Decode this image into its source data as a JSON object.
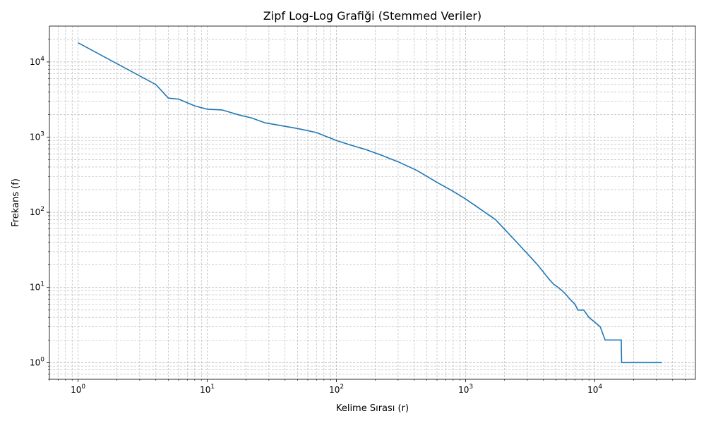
{
  "chart_data": {
    "type": "line",
    "title": "Zipf Log-Log Grafiği (Stemmed Veriler)",
    "xlabel": "Kelime Sırası (r)",
    "ylabel": "Frekans (f)",
    "xscale": "log",
    "yscale": "log",
    "xlim": [
      0.6,
      60000
    ],
    "ylim": [
      0.6,
      30000
    ],
    "x_tick_exponents": [
      0,
      1,
      2,
      3,
      4
    ],
    "y_tick_exponents": [
      0,
      1,
      2,
      3,
      4
    ],
    "grid": true,
    "line_color": "#1f77b4",
    "series": [
      {
        "x": [
          1,
          4,
          5,
          6,
          8,
          10,
          13,
          18,
          22,
          28,
          35,
          50,
          70,
          100,
          130,
          170,
          220,
          300,
          420,
          600,
          800,
          1000,
          1300,
          1700,
          2200,
          2800,
          3200,
          3600,
          4000,
          4400,
          4800,
          5200,
          5600,
          6000,
          6400,
          7000,
          7400,
          8200,
          9000,
          11000,
          12000,
          16000,
          16100,
          33000
        ],
        "y": [
          18000,
          5000,
          3300,
          3200,
          2600,
          2350,
          2300,
          1950,
          1800,
          1550,
          1450,
          1300,
          1150,
          900,
          780,
          680,
          580,
          470,
          360,
          250,
          190,
          150,
          110,
          80,
          50,
          32,
          25,
          20,
          16,
          13,
          11,
          10,
          9,
          8,
          7,
          6,
          5,
          5,
          4,
          3,
          2,
          2,
          1,
          1
        ]
      }
    ]
  }
}
